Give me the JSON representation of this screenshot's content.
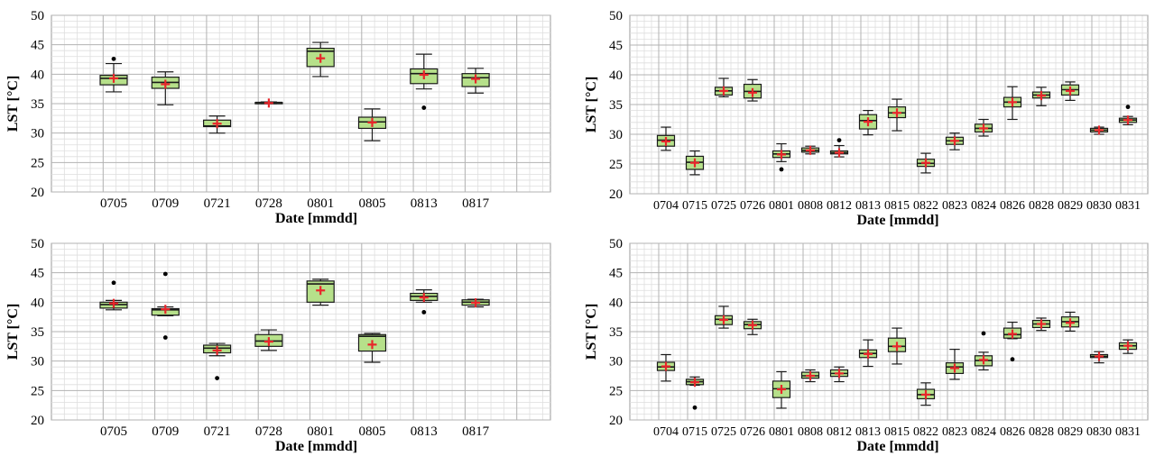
{
  "colors": {
    "box_fill": "#b6e08a",
    "box_stroke": "#1a1a1a",
    "mean_marker": "#e8262b",
    "outlier": "#000000",
    "grid_major": "#b3b3b3",
    "grid_minor": "#dedede"
  },
  "chart_data": [
    {
      "type": "box",
      "ylabel": "LST [°C]",
      "xlabel": "Date [mmdd]",
      "ylim": [
        20,
        50
      ],
      "yticks": [
        20,
        25,
        30,
        35,
        40,
        45,
        50
      ],
      "categories": [
        "0705",
        "0709",
        "0721",
        "0728",
        "0801",
        "0805",
        "0813",
        "0817"
      ],
      "boxes": [
        {
          "min": 37.0,
          "q1": 38.2,
          "median": 39.3,
          "q3": 39.8,
          "max": 41.8,
          "mean": 39.3,
          "outliers": [
            42.6
          ]
        },
        {
          "min": 34.8,
          "q1": 37.6,
          "median": 38.6,
          "q3": 39.5,
          "max": 40.4,
          "mean": 38.3,
          "outliers": []
        },
        {
          "min": 30.0,
          "q1": 31.1,
          "median": 31.2,
          "q3": 32.2,
          "max": 32.9,
          "mean": 31.6,
          "outliers": []
        },
        {
          "min": 35.0,
          "q1": 35.1,
          "median": 35.2,
          "q3": 35.2,
          "max": 35.3,
          "mean": 35.1,
          "outliers": []
        },
        {
          "min": 39.6,
          "q1": 41.3,
          "median": 43.9,
          "q3": 44.4,
          "max": 45.4,
          "mean": 42.7,
          "outliers": []
        },
        {
          "min": 28.7,
          "q1": 30.8,
          "median": 31.9,
          "q3": 32.7,
          "max": 34.1,
          "mean": 31.8,
          "outliers": []
        },
        {
          "min": 37.5,
          "q1": 38.4,
          "median": 40.1,
          "q3": 40.9,
          "max": 43.4,
          "mean": 39.9,
          "outliers": [
            34.3
          ]
        },
        {
          "min": 36.8,
          "q1": 37.9,
          "median": 39.4,
          "q3": 40.1,
          "max": 41.0,
          "mean": 39.2,
          "outliers": []
        }
      ]
    },
    {
      "type": "box",
      "ylabel": "LST [°C]",
      "xlabel": "Date [mmdd]",
      "ylim": [
        20,
        50
      ],
      "yticks": [
        20,
        25,
        30,
        35,
        40,
        45,
        50
      ],
      "categories": [
        "0704",
        "0715",
        "0725",
        "0726",
        "0801",
        "0808",
        "0812",
        "0813",
        "0815",
        "0822",
        "0823",
        "0824",
        "0826",
        "0828",
        "0829",
        "0830",
        "0831"
      ],
      "boxes": [
        {
          "min": 27.3,
          "q1": 28.0,
          "median": 29.0,
          "q3": 29.8,
          "max": 31.2,
          "mean": 28.8,
          "outliers": []
        },
        {
          "min": 23.2,
          "q1": 24.1,
          "median": 25.3,
          "q3": 26.3,
          "max": 27.2,
          "mean": 25.2,
          "outliers": []
        },
        {
          "min": 36.3,
          "q1": 36.6,
          "median": 37.3,
          "q3": 37.9,
          "max": 39.4,
          "mean": 37.3,
          "outliers": []
        },
        {
          "min": 35.6,
          "q1": 36.1,
          "median": 37.2,
          "q3": 38.4,
          "max": 39.2,
          "mean": 37.0,
          "outliers": []
        },
        {
          "min": 25.4,
          "q1": 26.1,
          "median": 26.7,
          "q3": 27.2,
          "max": 28.4,
          "mean": 26.6,
          "outliers": [
            24.1
          ]
        },
        {
          "min": 26.7,
          "q1": 27.0,
          "median": 27.3,
          "q3": 27.7,
          "max": 28.0,
          "mean": 27.3,
          "outliers": []
        },
        {
          "min": 26.2,
          "q1": 26.7,
          "median": 26.9,
          "q3": 27.2,
          "max": 28.1,
          "mean": 26.9,
          "outliers": [
            29.0
          ]
        },
        {
          "min": 29.9,
          "q1": 30.9,
          "median": 32.3,
          "q3": 33.3,
          "max": 34.0,
          "mean": 32.1,
          "outliers": []
        },
        {
          "min": 30.6,
          "q1": 32.8,
          "median": 33.6,
          "q3": 34.6,
          "max": 35.9,
          "mean": 33.6,
          "outliers": []
        },
        {
          "min": 23.5,
          "q1": 24.6,
          "median": 25.1,
          "q3": 25.8,
          "max": 26.8,
          "mean": 25.2,
          "outliers": []
        },
        {
          "min": 27.4,
          "q1": 28.3,
          "median": 28.9,
          "q3": 29.5,
          "max": 30.2,
          "mean": 28.9,
          "outliers": []
        },
        {
          "min": 29.7,
          "q1": 30.4,
          "median": 31.0,
          "q3": 31.7,
          "max": 32.5,
          "mean": 31.0,
          "outliers": []
        },
        {
          "min": 32.5,
          "q1": 34.6,
          "median": 35.4,
          "q3": 36.2,
          "max": 38.0,
          "mean": 35.4,
          "outliers": []
        },
        {
          "min": 34.8,
          "q1": 36.1,
          "median": 36.6,
          "q3": 37.1,
          "max": 37.9,
          "mean": 36.5,
          "outliers": []
        },
        {
          "min": 35.7,
          "q1": 36.6,
          "median": 37.5,
          "q3": 38.3,
          "max": 38.8,
          "mean": 37.3,
          "outliers": []
        },
        {
          "min": 30.0,
          "q1": 30.4,
          "median": 30.7,
          "q3": 31.0,
          "max": 31.2,
          "mean": 30.7,
          "outliers": []
        },
        {
          "min": 31.6,
          "q1": 32.0,
          "median": 32.4,
          "q3": 32.7,
          "max": 33.0,
          "mean": 32.4,
          "outliers": [
            34.6
          ]
        }
      ]
    },
    {
      "type": "box",
      "ylabel": "LST [°C]",
      "xlabel": "Date [mmdd]",
      "ylim": [
        20,
        50
      ],
      "yticks": [
        20,
        25,
        30,
        35,
        40,
        45,
        50
      ],
      "categories": [
        "0705",
        "0709",
        "0721",
        "0728",
        "0801",
        "0805",
        "0813",
        "0817"
      ],
      "boxes": [
        {
          "min": 38.7,
          "q1": 39.0,
          "median": 39.6,
          "q3": 40.0,
          "max": 40.3,
          "mean": 39.8,
          "outliers": [
            43.3
          ]
        },
        {
          "min": 37.7,
          "q1": 37.8,
          "median": 38.7,
          "q3": 38.9,
          "max": 39.2,
          "mean": 38.8,
          "outliers": [
            44.8,
            34.0
          ]
        },
        {
          "min": 30.9,
          "q1": 31.4,
          "median": 32.2,
          "q3": 32.7,
          "max": 33.0,
          "mean": 31.8,
          "outliers": [
            27.1
          ]
        },
        {
          "min": 31.8,
          "q1": 32.5,
          "median": 33.4,
          "q3": 34.5,
          "max": 35.3,
          "mean": 33.3,
          "outliers": []
        },
        {
          "min": 39.5,
          "q1": 40.0,
          "median": 43.1,
          "q3": 43.6,
          "max": 43.9,
          "mean": 42.0,
          "outliers": []
        },
        {
          "min": 29.8,
          "q1": 31.7,
          "median": 34.2,
          "q3": 34.5,
          "max": 34.7,
          "mean": 32.8,
          "outliers": []
        },
        {
          "min": 40.0,
          "q1": 40.3,
          "median": 41.0,
          "q3": 41.5,
          "max": 42.1,
          "mean": 40.8,
          "outliers": [
            38.3
          ]
        },
        {
          "min": 39.2,
          "q1": 39.5,
          "median": 40.0,
          "q3": 40.4,
          "max": 40.5,
          "mean": 39.9,
          "outliers": []
        }
      ]
    },
    {
      "type": "box",
      "ylabel": "LST [°C]",
      "xlabel": "Date [mmdd]",
      "ylim": [
        20,
        50
      ],
      "yticks": [
        20,
        25,
        30,
        35,
        40,
        45,
        50
      ],
      "categories": [
        "0704",
        "0715",
        "0725",
        "0726",
        "0801",
        "0808",
        "0812",
        "0813",
        "0815",
        "0822",
        "0823",
        "0824",
        "0826",
        "0828",
        "0829",
        "0830",
        "0831"
      ],
      "boxes": [
        {
          "min": 26.6,
          "q1": 28.4,
          "median": 29.0,
          "q3": 29.8,
          "max": 31.1,
          "mean": 29.1,
          "outliers": []
        },
        {
          "min": 25.9,
          "q1": 26.0,
          "median": 26.5,
          "q3": 26.9,
          "max": 27.3,
          "mean": 26.4,
          "outliers": [
            22.1
          ]
        },
        {
          "min": 35.6,
          "q1": 36.2,
          "median": 37.1,
          "q3": 37.7,
          "max": 39.3,
          "mean": 37.0,
          "outliers": []
        },
        {
          "min": 34.5,
          "q1": 35.5,
          "median": 36.2,
          "q3": 36.7,
          "max": 37.1,
          "mean": 36.1,
          "outliers": []
        },
        {
          "min": 22.0,
          "q1": 23.8,
          "median": 25.3,
          "q3": 26.6,
          "max": 28.2,
          "mean": 25.2,
          "outliers": []
        },
        {
          "min": 26.5,
          "q1": 27.1,
          "median": 27.5,
          "q3": 28.1,
          "max": 28.5,
          "mean": 27.5,
          "outliers": []
        },
        {
          "min": 26.5,
          "q1": 27.4,
          "median": 27.9,
          "q3": 28.5,
          "max": 29.0,
          "mean": 27.9,
          "outliers": []
        },
        {
          "min": 29.1,
          "q1": 30.6,
          "median": 31.3,
          "q3": 31.9,
          "max": 33.6,
          "mean": 31.2,
          "outliers": []
        },
        {
          "min": 29.5,
          "q1": 31.6,
          "median": 32.5,
          "q3": 33.9,
          "max": 35.6,
          "mean": 32.5,
          "outliers": []
        },
        {
          "min": 22.5,
          "q1": 23.6,
          "median": 24.3,
          "q3": 25.2,
          "max": 26.3,
          "mean": 24.3,
          "outliers": []
        },
        {
          "min": 26.9,
          "q1": 27.9,
          "median": 29.0,
          "q3": 29.7,
          "max": 32.0,
          "mean": 28.8,
          "outliers": []
        },
        {
          "min": 28.5,
          "q1": 29.2,
          "median": 30.1,
          "q3": 30.9,
          "max": 31.5,
          "mean": 30.2,
          "outliers": [
            34.7
          ]
        },
        {
          "min": 33.8,
          "q1": 33.9,
          "median": 34.5,
          "q3": 35.6,
          "max": 36.6,
          "mean": 34.6,
          "outliers": [
            30.3
          ]
        },
        {
          "min": 35.2,
          "q1": 35.7,
          "median": 36.3,
          "q3": 36.9,
          "max": 37.3,
          "mean": 36.3,
          "outliers": []
        },
        {
          "min": 35.1,
          "q1": 35.8,
          "median": 36.7,
          "q3": 37.5,
          "max": 38.3,
          "mean": 36.5,
          "outliers": []
        },
        {
          "min": 29.7,
          "q1": 30.6,
          "median": 30.8,
          "q3": 31.1,
          "max": 31.6,
          "mean": 30.8,
          "outliers": []
        },
        {
          "min": 31.3,
          "q1": 32.0,
          "median": 32.6,
          "q3": 33.1,
          "max": 33.6,
          "mean": 32.6,
          "outliers": []
        }
      ]
    }
  ]
}
